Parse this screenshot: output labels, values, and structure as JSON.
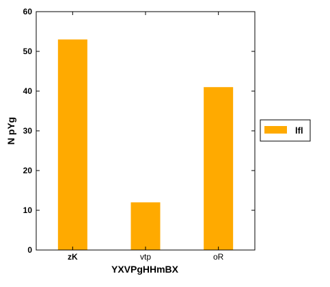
{
  "chart_data": {
    "type": "bar",
    "title": "",
    "xlabel": "YXVPgHHmBX",
    "ylabel": "N pYg",
    "categories": [
      "zK",
      "vtp",
      "oR"
    ],
    "series": [
      {
        "name": "lfl",
        "values": [
          53,
          12,
          41
        ]
      }
    ],
    "ylim": [
      0,
      60
    ],
    "yticks": [
      0,
      10,
      20,
      30,
      40,
      50,
      60
    ],
    "grid": false,
    "legend_position": "right",
    "colors": {
      "bar": "#ffaa00",
      "axis": "#000000",
      "background": "#ffffff"
    }
  }
}
